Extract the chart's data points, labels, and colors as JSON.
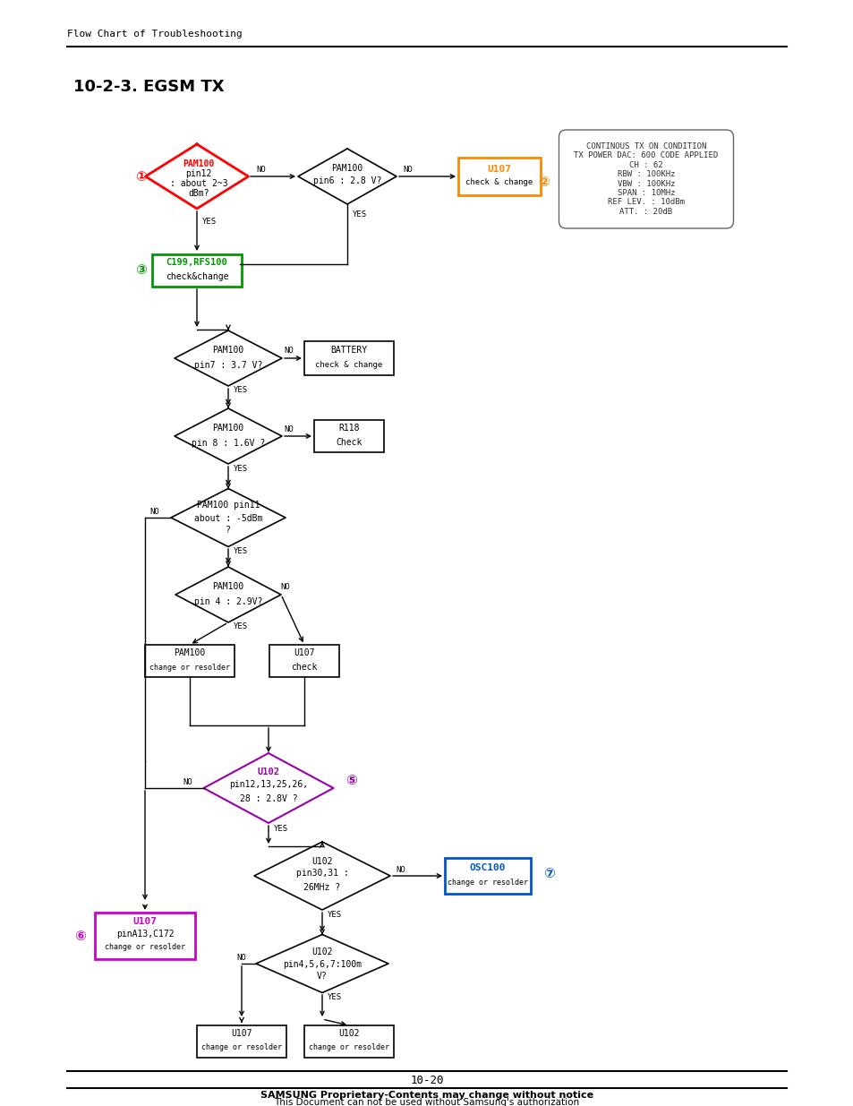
{
  "title": "10-2-3. EGSM TX",
  "header": "Flow Chart of Troubleshooting",
  "footer_line1": "SAMSUNG Proprietary-Contents may change without notice",
  "footer_line2": "This Document can not be used without Samsung's authorization",
  "page_number": "10-20",
  "info_box_lines": [
    "CONTINOUS TX ON CONDITION",
    "TX POWER DAC: 600 CODE APPLIED",
    "CH : 62",
    "RBW : 100KHz",
    "VBW : 100KHz",
    "SPAN : 10MHz",
    "REF LEV. : 10dBm",
    "ATT. : 20dB"
  ],
  "bg_color": "#ffffff"
}
